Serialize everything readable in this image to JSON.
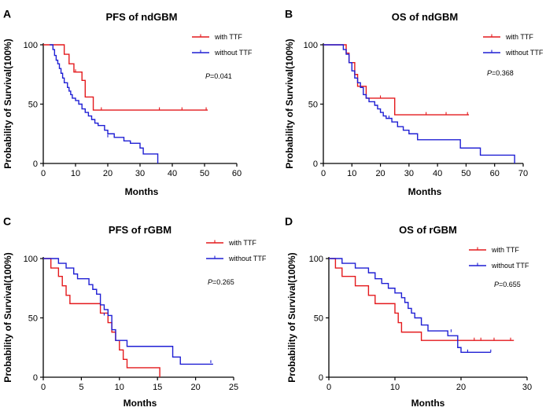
{
  "chart_data": [
    {
      "panel": "A",
      "type": "line",
      "subtype": "kaplan-meier",
      "title": "PFS of ndGBM",
      "xlabel": "Months",
      "ylabel": "Probability of Survival(100%)",
      "xlim": [
        0,
        60
      ],
      "ylim": [
        0,
        100
      ],
      "xticks": [
        0,
        10,
        20,
        30,
        40,
        50,
        60
      ],
      "yticks": [
        0,
        50,
        100
      ],
      "p_prefix": "P",
      "p_value": "=0.041",
      "legend_position": "top-right",
      "series": [
        {
          "name": "with TTF",
          "color": "#e4191c",
          "steps": [
            [
              0,
              100
            ],
            [
              6.5,
              92
            ],
            [
              8,
              84
            ],
            [
              9.5,
              77
            ],
            [
              12,
              70
            ],
            [
              13,
              56
            ],
            [
              15.5,
              45
            ],
            [
              51,
              45
            ]
          ],
          "censored": [
            [
              10,
              77
            ],
            [
              18,
              45
            ],
            [
              36,
              45
            ],
            [
              43,
              45
            ],
            [
              50.5,
              45
            ]
          ]
        },
        {
          "name": "without TTF",
          "color": "#1f1fd4",
          "steps": [
            [
              2,
              100
            ],
            [
              3,
              96
            ],
            [
              3.5,
              91
            ],
            [
              4,
              87
            ],
            [
              4.5,
              84
            ],
            [
              5,
              80
            ],
            [
              5.5,
              76
            ],
            [
              6,
              72
            ],
            [
              6.5,
              68
            ],
            [
              7.5,
              64
            ],
            [
              8,
              61
            ],
            [
              8.5,
              58
            ],
            [
              9,
              55
            ],
            [
              10,
              53
            ],
            [
              11,
              50
            ],
            [
              12,
              46
            ],
            [
              13,
              43
            ],
            [
              14,
              40
            ],
            [
              15,
              37
            ],
            [
              16,
              34
            ],
            [
              17,
              32
            ],
            [
              19,
              28
            ],
            [
              20,
              25
            ],
            [
              22,
              22
            ],
            [
              25,
              19
            ],
            [
              27,
              17
            ],
            [
              30,
              13
            ],
            [
              31,
              8
            ],
            [
              35.5,
              0
            ],
            [
              35.5,
              0
            ]
          ],
          "censored": [
            [
              20,
              22
            ]
          ]
        }
      ]
    },
    {
      "panel": "B",
      "type": "line",
      "subtype": "kaplan-meier",
      "title": "OS of ndGBM",
      "xlabel": "Months",
      "ylabel": "Probability of Survival(100%)",
      "xlim": [
        0,
        70
      ],
      "ylim": [
        0,
        100
      ],
      "xticks": [
        0,
        10,
        20,
        30,
        40,
        50,
        60,
        70
      ],
      "yticks": [
        0,
        50,
        100
      ],
      "p_prefix": "P",
      "p_value": "=0.368",
      "legend_position": "top-right",
      "series": [
        {
          "name": "with TTF",
          "color": "#e4191c",
          "steps": [
            [
              0,
              100
            ],
            [
              6.5,
              100
            ],
            [
              8,
              93
            ],
            [
              9,
              85
            ],
            [
              11,
              75
            ],
            [
              12,
              65
            ],
            [
              15,
              55
            ],
            [
              25,
              41
            ],
            [
              51,
              41
            ]
          ],
          "censored": [
            [
              20,
              55
            ],
            [
              36,
              41
            ],
            [
              43,
              41
            ],
            [
              50.5,
              41
            ]
          ]
        },
        {
          "name": "without TTF",
          "color": "#1f1fd4",
          "steps": [
            [
              0,
              100
            ],
            [
              7,
              96
            ],
            [
              8,
              92
            ],
            [
              9,
              85
            ],
            [
              10,
              78
            ],
            [
              11,
              72
            ],
            [
              12,
              68
            ],
            [
              13,
              64
            ],
            [
              14,
              58
            ],
            [
              15,
              55
            ],
            [
              16,
              52
            ],
            [
              18,
              49
            ],
            [
              19,
              46
            ],
            [
              20,
              43
            ],
            [
              21,
              40
            ],
            [
              22,
              38
            ],
            [
              24,
              35
            ],
            [
              26,
              31
            ],
            [
              28,
              28
            ],
            [
              30,
              25
            ],
            [
              33,
              20
            ],
            [
              45,
              20
            ],
            [
              48,
              13
            ],
            [
              55,
              7
            ],
            [
              67,
              0
            ],
            [
              67,
              0
            ]
          ],
          "censored": [
            [
              23,
              38
            ]
          ]
        }
      ]
    },
    {
      "panel": "C",
      "type": "line",
      "subtype": "kaplan-meier",
      "title": "PFS of rGBM",
      "xlabel": "Months",
      "ylabel": "Probability of Survival(100%)",
      "xlim": [
        0,
        25
      ],
      "ylim": [
        0,
        100
      ],
      "xticks": [
        0,
        5,
        10,
        15,
        20,
        25
      ],
      "yticks": [
        0,
        50,
        100
      ],
      "p_prefix": "P",
      "p_value": "=0.265",
      "legend_position": "top-right",
      "series": [
        {
          "name": "with TTF",
          "color": "#e4191c",
          "steps": [
            [
              0,
              100
            ],
            [
              1,
              92
            ],
            [
              2,
              85
            ],
            [
              2.5,
              77
            ],
            [
              3,
              69
            ],
            [
              3.5,
              62
            ],
            [
              7.5,
              54
            ],
            [
              8.5,
              46
            ],
            [
              9,
              38
            ],
            [
              9.5,
              31
            ],
            [
              10,
              23
            ],
            [
              10.5,
              15
            ],
            [
              11,
              8
            ],
            [
              15,
              8
            ],
            [
              15.3,
              0
            ],
            [
              15.3,
              0
            ]
          ],
          "censored": []
        },
        {
          "name": "without TTF",
          "color": "#1f1fd4",
          "steps": [
            [
              0,
              100
            ],
            [
              2,
              96
            ],
            [
              3,
              92
            ],
            [
              4,
              87
            ],
            [
              4.5,
              83
            ],
            [
              6,
              78
            ],
            [
              6.5,
              74
            ],
            [
              7,
              70
            ],
            [
              7.5,
              61
            ],
            [
              8,
              57
            ],
            [
              8.5,
              52
            ],
            [
              9,
              40
            ],
            [
              9.5,
              31
            ],
            [
              11,
              26
            ],
            [
              17,
              17
            ],
            [
              18,
              11
            ],
            [
              22.3,
              11
            ]
          ],
          "censored": [
            [
              8,
              52
            ],
            [
              22,
              12
            ]
          ]
        }
      ]
    },
    {
      "panel": "D",
      "type": "line",
      "subtype": "kaplan-meier",
      "title": "OS of rGBM",
      "xlabel": "Months",
      "ylabel": "Probability of Survival(100%)",
      "xlim": [
        0,
        30
      ],
      "ylim": [
        0,
        100
      ],
      "xticks": [
        0,
        10,
        20,
        30
      ],
      "yticks": [
        0,
        50,
        100
      ],
      "p_prefix": "P",
      "p_value": "=0.655",
      "legend_position": "top-right",
      "series": [
        {
          "name": "with TTF",
          "color": "#e4191c",
          "steps": [
            [
              0,
              100
            ],
            [
              1,
              92
            ],
            [
              2,
              85
            ],
            [
              4,
              77
            ],
            [
              6,
              69
            ],
            [
              7,
              62
            ],
            [
              10,
              54
            ],
            [
              10.5,
              46
            ],
            [
              11,
              38
            ],
            [
              14,
              31
            ],
            [
              28,
              31
            ]
          ],
          "censored": [
            [
              22,
              31
            ],
            [
              23,
              31
            ],
            [
              25,
              31
            ],
            [
              27.5,
              31
            ]
          ]
        },
        {
          "name": "without TTF",
          "color": "#1f1fd4",
          "steps": [
            [
              0,
              100
            ],
            [
              2,
              96
            ],
            [
              4,
              92
            ],
            [
              6,
              88
            ],
            [
              7,
              83
            ],
            [
              8,
              79
            ],
            [
              9,
              75
            ],
            [
              10,
              71
            ],
            [
              11,
              67
            ],
            [
              11.5,
              63
            ],
            [
              12,
              58
            ],
            [
              12.5,
              54
            ],
            [
              13,
              50
            ],
            [
              14,
              44
            ],
            [
              15,
              39
            ],
            [
              18,
              35
            ],
            [
              19.5,
              25
            ],
            [
              20,
              21
            ],
            [
              24.5,
              21
            ]
          ],
          "censored": [
            [
              18.5,
              38
            ],
            [
              21,
              21
            ],
            [
              24.5,
              21
            ]
          ]
        }
      ]
    }
  ]
}
